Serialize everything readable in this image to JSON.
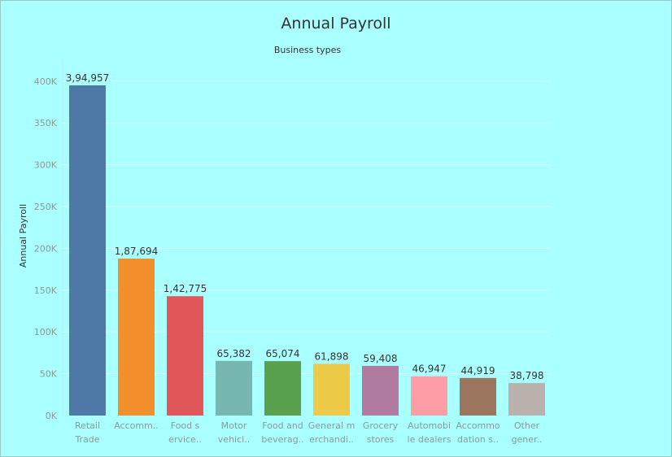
{
  "chart_data": {
    "type": "bar",
    "title": "Annual Payroll",
    "subtitle": "Business types",
    "xlabel": "",
    "ylabel": "Annual Payroll",
    "ylim": [
      0,
      420000
    ],
    "yticks": [
      {
        "value": 0,
        "label": "0K"
      },
      {
        "value": 50000,
        "label": "50K"
      },
      {
        "value": 100000,
        "label": "100K"
      },
      {
        "value": 150000,
        "label": "150K"
      },
      {
        "value": 200000,
        "label": "200K"
      },
      {
        "value": 250000,
        "label": "250K"
      },
      {
        "value": 300000,
        "label": "300K"
      },
      {
        "value": 350000,
        "label": "350K"
      },
      {
        "value": 400000,
        "label": "400K"
      }
    ],
    "grid": true,
    "legend": "none",
    "categories": [
      [
        "Retail",
        "Trade"
      ],
      [
        "Accomm..",
        ""
      ],
      [
        "Food s",
        "ervice.."
      ],
      [
        "Motor",
        "vehicl.."
      ],
      [
        "Food and",
        "beverag.."
      ],
      [
        "General m",
        "erchandi.."
      ],
      [
        "Grocery",
        "stores"
      ],
      [
        "Automobi",
        "le dealers"
      ],
      [
        "Accommo",
        "dation s.."
      ],
      [
        "Other",
        "gener.."
      ]
    ],
    "values": [
      394957,
      187694,
      142775,
      65382,
      65074,
      61898,
      59408,
      46947,
      44919,
      38798
    ],
    "data_labels": [
      "3,94,957",
      "1,87,694",
      "1,42,775",
      "65,382",
      "65,074",
      "61,898",
      "59,408",
      "46,947",
      "44,919",
      "38,798"
    ],
    "colors": [
      "#4e79a7",
      "#f28e2b",
      "#e15759",
      "#76b7b2",
      "#59a14f",
      "#edc948",
      "#b07aa1",
      "#ff9da7",
      "#9c755f",
      "#bab0ac"
    ]
  }
}
